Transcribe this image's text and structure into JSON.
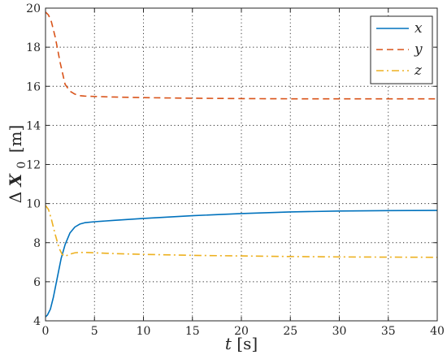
{
  "chart_data": {
    "type": "line",
    "xlabel": {
      "symbol": "t",
      "unit": "[s]"
    },
    "ylabel": {
      "prefix": "Δ",
      "symbol": "X",
      "subscript": "0",
      "unit": "[m]"
    },
    "xlim": [
      0,
      40
    ],
    "ylim": [
      4,
      20
    ],
    "xticks": [
      0,
      5,
      10,
      15,
      20,
      25,
      30,
      35,
      40
    ],
    "yticks": [
      4,
      6,
      8,
      10,
      12,
      14,
      16,
      18,
      20
    ],
    "grid": true,
    "grid_style": "dotted",
    "legend_position": "top-right",
    "series": [
      {
        "name": "x",
        "color": "#0072BD",
        "style": "solid",
        "x": [
          0,
          0.2,
          0.5,
          0.8,
          1.2,
          1.6,
          2.0,
          2.5,
          3.0,
          3.5,
          4.0,
          5,
          7,
          10,
          15,
          20,
          25,
          30,
          35,
          40
        ],
        "y": [
          4.2,
          4.3,
          4.6,
          5.2,
          6.2,
          7.2,
          7.9,
          8.5,
          8.8,
          8.95,
          9.02,
          9.07,
          9.14,
          9.24,
          9.38,
          9.49,
          9.57,
          9.62,
          9.64,
          9.65
        ]
      },
      {
        "name": "y",
        "color": "#D95319",
        "style": "dashed",
        "x": [
          0,
          0.3,
          0.6,
          1.0,
          1.5,
          2.0,
          2.5,
          3.0,
          3.5,
          4.0,
          5,
          7,
          10,
          15,
          20,
          25,
          30,
          35,
          40
        ],
        "y": [
          19.8,
          19.65,
          19.3,
          18.5,
          17.2,
          16.1,
          15.75,
          15.6,
          15.52,
          15.5,
          15.48,
          15.45,
          15.42,
          15.39,
          15.37,
          15.36,
          15.36,
          15.36,
          15.36
        ]
      },
      {
        "name": "z",
        "color": "#EDB120",
        "style": "dashdot",
        "x": [
          0,
          0.3,
          0.6,
          1.0,
          1.4,
          1.7,
          2.0,
          2.4,
          3.0,
          3.5,
          4.0,
          5,
          7,
          10,
          15,
          20,
          25,
          30,
          35,
          40
        ],
        "y": [
          9.9,
          9.7,
          9.2,
          8.4,
          7.7,
          7.4,
          7.3,
          7.4,
          7.48,
          7.5,
          7.5,
          7.48,
          7.44,
          7.4,
          7.35,
          7.32,
          7.29,
          7.27,
          7.26,
          7.25
        ]
      }
    ]
  }
}
